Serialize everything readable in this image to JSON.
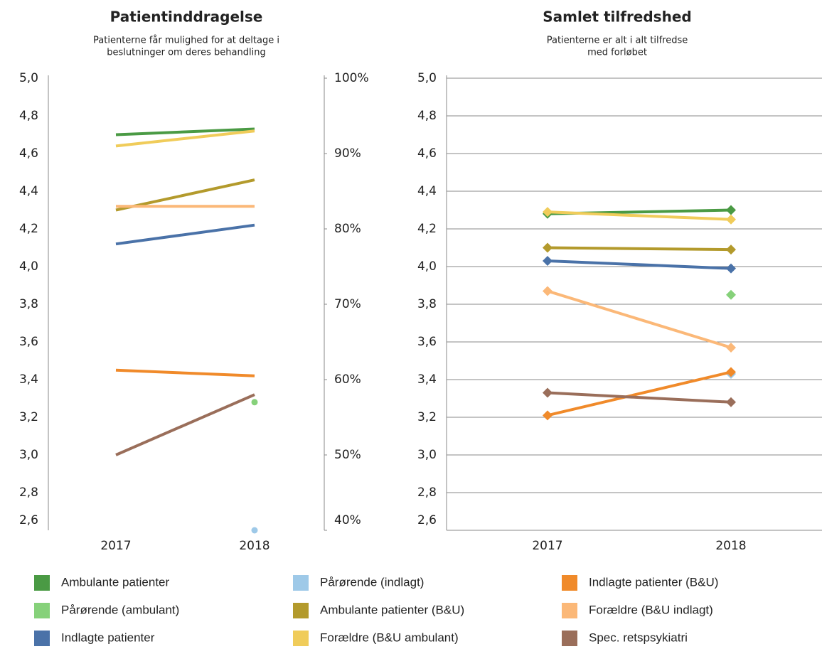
{
  "chart_data": [
    {
      "type": "line",
      "title": "Patientinddragelse",
      "subtitle": [
        "Patienterne får mulighed for at deltage i",
        "beslutninger om deres behandling"
      ],
      "categories": [
        "2017",
        "2018"
      ],
      "markers": "none",
      "grid": false,
      "ylim": [
        2.6,
        5.0
      ],
      "yticks": [
        {
          "value": 2.6,
          "label": "2,6"
        },
        {
          "value": 2.8,
          "label": "2,8"
        },
        {
          "value": 3.0,
          "label": "3,0"
        },
        {
          "value": 3.2,
          "label": "3,2"
        },
        {
          "value": 3.4,
          "label": "3,4"
        },
        {
          "value": 3.6,
          "label": "3,6"
        },
        {
          "value": 3.8,
          "label": "3,8"
        },
        {
          "value": 4.0,
          "label": "4,0"
        },
        {
          "value": 4.2,
          "label": "4,2"
        },
        {
          "value": 4.4,
          "label": "4,4"
        },
        {
          "value": 4.6,
          "label": "4,6"
        },
        {
          "value": 4.8,
          "label": "4,8"
        },
        {
          "value": 5.0,
          "label": "5,0"
        }
      ],
      "y2lim": [
        40,
        100
      ],
      "y2ticks": [
        {
          "value": 40,
          "label": "40%"
        },
        {
          "value": 50,
          "label": "50%"
        },
        {
          "value": 60,
          "label": "60%"
        },
        {
          "value": 70,
          "label": "70%"
        },
        {
          "value": 80,
          "label": "80%"
        },
        {
          "value": 90,
          "label": "90%"
        },
        {
          "value": 100,
          "label": "100%"
        }
      ],
      "series": [
        {
          "name": "Ambulante patienter",
          "color": "#4a9a44",
          "values": [
            4.7,
            4.73
          ]
        },
        {
          "name": "Pårørende (ambulant)",
          "color": "#86d17a",
          "values": [
            null,
            3.28
          ]
        },
        {
          "name": "Indlagte patienter",
          "color": "#4a72a8",
          "values": [
            4.12,
            4.22
          ]
        },
        {
          "name": "Pårørende (indlagt)",
          "color": "#9ec9e8",
          "values": [
            null,
            2.6
          ]
        },
        {
          "name": "Ambulante patienter (B&U)",
          "color": "#b39a2c",
          "values": [
            4.3,
            4.46
          ]
        },
        {
          "name": "Forældre (B&U ambulant)",
          "color": "#f0cc5a",
          "values": [
            4.64,
            4.72
          ]
        },
        {
          "name": "Indlagte patienter (B&U)",
          "color": "#f08a2a",
          "values": [
            3.45,
            3.42
          ]
        },
        {
          "name": "Forældre (B&U indlagt)",
          "color": "#fbb878",
          "values": [
            4.32,
            4.32
          ]
        },
        {
          "name": "Spec. retspsykiatri",
          "color": "#9a6e5a",
          "values": [
            3.0,
            3.32
          ]
        }
      ]
    },
    {
      "type": "line",
      "title": "Samlet tilfredshed",
      "subtitle": [
        "Patienterne er alt i alt tilfredse",
        "med forløbet"
      ],
      "categories": [
        "2017",
        "2018"
      ],
      "markers": "diamond",
      "grid": true,
      "ylim": [
        2.6,
        5.0
      ],
      "yticks": [
        {
          "value": 2.6,
          "label": "2,6"
        },
        {
          "value": 2.8,
          "label": "2,8"
        },
        {
          "value": 3.0,
          "label": "3,0"
        },
        {
          "value": 3.2,
          "label": "3,2"
        },
        {
          "value": 3.4,
          "label": "3,4"
        },
        {
          "value": 3.6,
          "label": "3,6"
        },
        {
          "value": 3.8,
          "label": "3,8"
        },
        {
          "value": 4.0,
          "label": "4,0"
        },
        {
          "value": 4.2,
          "label": "4,2"
        },
        {
          "value": 4.4,
          "label": "4,4"
        },
        {
          "value": 4.6,
          "label": "4,6"
        },
        {
          "value": 4.8,
          "label": "4,8"
        },
        {
          "value": 5.0,
          "label": "5,0"
        }
      ],
      "series": [
        {
          "color": "#4a9a44",
          "values": [
            4.28,
            4.3
          ]
        },
        {
          "color": "#86d17a",
          "values": [
            null,
            3.85
          ]
        },
        {
          "color": "#4a72a8",
          "values": [
            4.03,
            3.99
          ]
        },
        {
          "color": "#9ec9e8",
          "values": [
            null,
            3.43
          ]
        },
        {
          "color": "#b39a2c",
          "values": [
            4.1,
            4.09
          ]
        },
        {
          "color": "#f0cc5a",
          "values": [
            4.29,
            4.25
          ]
        },
        {
          "color": "#f08a2a",
          "values": [
            3.21,
            3.44
          ]
        },
        {
          "color": "#fbb878",
          "values": [
            3.87,
            3.57
          ]
        },
        {
          "color": "#9a6e5a",
          "values": [
            3.33,
            3.28
          ]
        }
      ]
    }
  ]
}
